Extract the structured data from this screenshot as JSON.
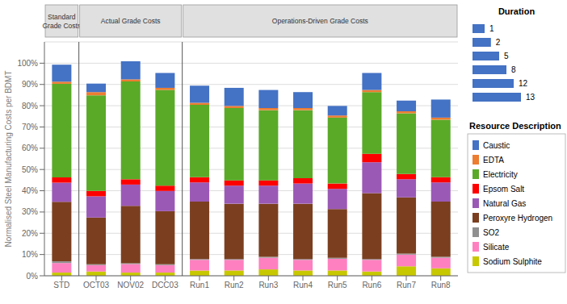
{
  "chart_data": {
    "type": "bar",
    "stacked": true,
    "grid": true,
    "categories": [
      "STD",
      "OCT03",
      "NOV02",
      "DCC03",
      "Run1",
      "Run2",
      "Run3",
      "Run4",
      "Run5",
      "Run6",
      "Run7",
      "Run8"
    ],
    "y_label": "Normalised Steel Manufacturing Costs per BDMT",
    "ylim": [
      0,
      110
    ],
    "yticks": [
      {
        "value": 0,
        "label": "0%"
      },
      {
        "value": 10,
        "label": "10%"
      },
      {
        "value": 20,
        "label": "20%"
      },
      {
        "value": 30,
        "label": "30%"
      },
      {
        "value": 40,
        "label": "40%"
      },
      {
        "value": 50,
        "label": "50%"
      },
      {
        "value": 60,
        "label": "60%"
      },
      {
        "value": 70,
        "label": "70%"
      },
      {
        "value": 80,
        "label": "80%"
      },
      {
        "value": 90,
        "label": "90%"
      },
      {
        "value": 100,
        "label": "100%"
      }
    ],
    "sections": [
      {
        "label": "Standard\nGrade Costs",
        "first": "STD",
        "last": "STD"
      },
      {
        "label": "Actual Grade Costs",
        "first": "OCT03",
        "last": "DCC03"
      },
      {
        "label": "Operations-Driven Grade Costs",
        "first": "Run1",
        "last": "Run8"
      }
    ],
    "series": [
      {
        "name": "Sodium Sulphite",
        "color": "#C8C800",
        "values": [
          1.5,
          2.0,
          1.5,
          1.5,
          2.5,
          2.5,
          3.0,
          2.5,
          2.5,
          2.0,
          4.5,
          3.5
        ]
      },
      {
        "name": "Silicate",
        "color": "#FF80C0",
        "values": [
          4.5,
          3.0,
          4.0,
          3.5,
          5.0,
          5.0,
          5.5,
          5.0,
          5.5,
          5.5,
          5.5,
          5.0
        ]
      },
      {
        "name": "SO2",
        "color": "#909090",
        "values": [
          0.8,
          0.4,
          0.4,
          0.4,
          0.4,
          0.4,
          0.4,
          0.4,
          0.4,
          0.4,
          0.4,
          0.4
        ]
      },
      {
        "name": "Peroxyre Hydrogen",
        "color": "#7B3F20",
        "values": [
          28.0,
          22.0,
          27.0,
          25.0,
          27.0,
          26.0,
          25.0,
          26.0,
          23.0,
          31.0,
          26.5,
          26.0
        ]
      },
      {
        "name": "Natural Gas",
        "color": "#9B59B6",
        "values": [
          9.0,
          10.0,
          10.0,
          9.5,
          9.0,
          8.5,
          8.5,
          9.5,
          9.5,
          14.5,
          8.5,
          9.0
        ]
      },
      {
        "name": "Epsom Salt",
        "color": "#FF0000",
        "values": [
          2.5,
          2.5,
          2.5,
          2.5,
          2.5,
          2.5,
          2.5,
          2.5,
          2.5,
          4.0,
          2.5,
          2.5
        ]
      },
      {
        "name": "Electricity",
        "color": "#5AAA28",
        "values": [
          44.0,
          45.0,
          46.0,
          45.0,
          34.0,
          34.0,
          33.0,
          32.0,
          31.0,
          29.0,
          28.5,
          27.0
        ]
      },
      {
        "name": "EDTA",
        "color": "#ED7D31",
        "values": [
          1.0,
          1.5,
          1.0,
          1.0,
          1.0,
          1.0,
          1.0,
          1.0,
          1.0,
          1.0,
          1.0,
          1.0
        ]
      },
      {
        "name": "Caustic",
        "color": "#4472C4",
        "values": [
          8.0,
          4.0,
          8.5,
          7.0,
          8.0,
          8.5,
          8.5,
          7.5,
          4.5,
          8.0,
          5.0,
          8.5
        ]
      }
    ],
    "legend_title": "Resource Description",
    "duration": {
      "title": "Duration",
      "values": [
        1,
        2,
        5,
        8,
        12,
        13
      ],
      "widths": [
        0.25,
        0.38,
        0.55,
        0.7,
        0.85,
        1.0
      ],
      "color": "#4472C4"
    }
  }
}
